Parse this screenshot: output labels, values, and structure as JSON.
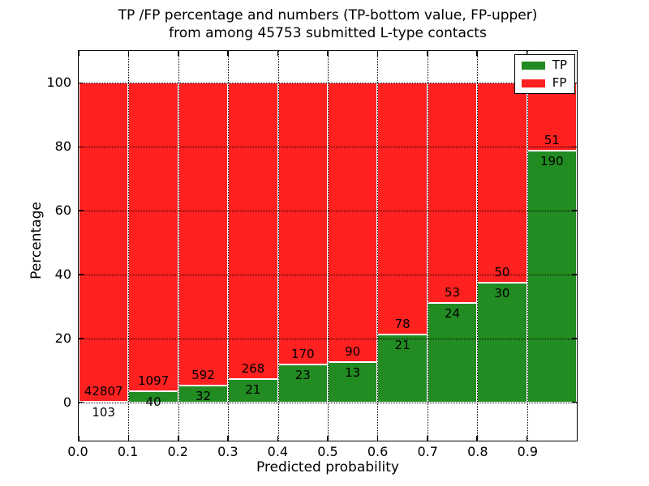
{
  "title": {
    "line1": "TP /FP percentage and numbers (TP-bottom value, FP-upper)",
    "line2": "from among 45753 submitted L-type contacts"
  },
  "axes": {
    "xlabel": "Predicted probability",
    "ylabel": "Percentage"
  },
  "legend": {
    "position": "upper right",
    "entries": [
      {
        "label": "TP",
        "color": "#228B22"
      },
      {
        "label": "FP",
        "color": "#ff2020"
      }
    ]
  },
  "chart_data": {
    "type": "bar",
    "stacked": true,
    "normalized_to_percent": true,
    "title": "TP /FP percentage and numbers (TP-bottom value, FP-upper)\nfrom among 45753 submitted L-type contacts",
    "total_submitted_contacts": 45753,
    "xlabel": "Predicted probability",
    "ylabel": "Percentage",
    "xlim": [
      0.0,
      1.0
    ],
    "ylim": [
      -12,
      110
    ],
    "bin_width": 0.1,
    "x_ticks": [
      0.0,
      0.1,
      0.2,
      0.3,
      0.4,
      0.5,
      0.6,
      0.7,
      0.8,
      0.9
    ],
    "x_tick_labels": [
      "0.0",
      "0.1",
      "0.2",
      "0.3",
      "0.4",
      "0.5",
      "0.6",
      "0.7",
      "0.8",
      "0.9"
    ],
    "y_ticks": [
      0,
      20,
      40,
      60,
      80,
      100
    ],
    "y_tick_labels": [
      "0",
      "20",
      "40",
      "60",
      "80",
      "100"
    ],
    "grid": "dotted, both axes, drawn over bars",
    "colors": {
      "tp": "#228B22",
      "fp": "#ff2020",
      "bar_edge": "#ffffff"
    },
    "series": [
      {
        "name": "TP",
        "color": "#228B22",
        "counts": [
          103,
          40,
          32,
          21,
          23,
          13,
          21,
          24,
          30,
          190
        ]
      },
      {
        "name": "FP",
        "color": "#ff2020",
        "counts": [
          42807,
          1097,
          592,
          268,
          170,
          90,
          78,
          53,
          50,
          51
        ]
      }
    ],
    "bins": [
      {
        "x_start": 0.0,
        "x_end": 0.1,
        "tp": 103,
        "fp": 42807,
        "tp_percent": 0.24,
        "fp_percent": 99.76
      },
      {
        "x_start": 0.1,
        "x_end": 0.2,
        "tp": 40,
        "fp": 1097,
        "tp_percent": 3.52,
        "fp_percent": 96.48
      },
      {
        "x_start": 0.2,
        "x_end": 0.3,
        "tp": 32,
        "fp": 592,
        "tp_percent": 5.13,
        "fp_percent": 94.87
      },
      {
        "x_start": 0.3,
        "x_end": 0.4,
        "tp": 21,
        "fp": 268,
        "tp_percent": 7.27,
        "fp_percent": 92.73
      },
      {
        "x_start": 0.4,
        "x_end": 0.5,
        "tp": 23,
        "fp": 170,
        "tp_percent": 11.92,
        "fp_percent": 88.08
      },
      {
        "x_start": 0.5,
        "x_end": 0.6,
        "tp": 13,
        "fp": 90,
        "tp_percent": 12.62,
        "fp_percent": 87.38
      },
      {
        "x_start": 0.6,
        "x_end": 0.7,
        "tp": 21,
        "fp": 78,
        "tp_percent": 21.21,
        "fp_percent": 78.79
      },
      {
        "x_start": 0.7,
        "x_end": 0.8,
        "tp": 24,
        "fp": 53,
        "tp_percent": 31.17,
        "fp_percent": 68.83
      },
      {
        "x_start": 0.8,
        "x_end": 0.9,
        "tp": 30,
        "fp": 50,
        "tp_percent": 37.5,
        "fp_percent": 62.5
      },
      {
        "x_start": 0.9,
        "x_end": 1.0,
        "tp": 190,
        "fp": 51,
        "tp_percent": 78.84,
        "fp_percent": 21.16
      }
    ],
    "label_convention": "TP count below segment boundary, FP count above segment boundary"
  }
}
